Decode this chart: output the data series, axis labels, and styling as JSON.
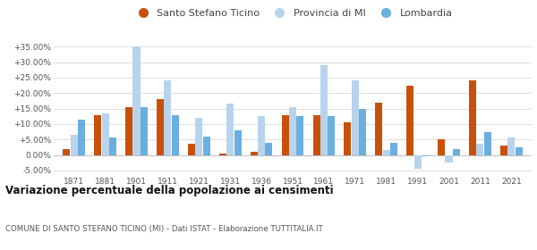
{
  "years": [
    1871,
    1881,
    1901,
    1911,
    1921,
    1931,
    1936,
    1951,
    1961,
    1971,
    1981,
    1991,
    2001,
    2011,
    2021
  ],
  "santo_stefano": [
    2.0,
    13.0,
    15.5,
    18.0,
    3.5,
    0.5,
    1.0,
    13.0,
    13.0,
    10.5,
    17.0,
    22.5,
    5.0,
    24.0,
    3.0
  ],
  "provincia_mi": [
    6.5,
    13.5,
    35.0,
    24.0,
    12.0,
    16.5,
    12.5,
    15.5,
    29.0,
    24.0,
    1.5,
    -4.5,
    -2.5,
    3.5,
    5.5
  ],
  "lombardia": [
    11.5,
    5.5,
    15.5,
    13.0,
    6.0,
    8.0,
    4.0,
    12.5,
    12.5,
    15.0,
    4.0,
    -0.5,
    2.0,
    7.5,
    2.5
  ],
  "color_santo": "#c8510a",
  "color_provincia": "#b8d4ec",
  "color_lombardia": "#6aafe0",
  "ylim": [
    -6.5,
    38
  ],
  "yticks": [
    -5,
    0,
    5,
    10,
    15,
    20,
    25,
    30,
    35
  ],
  "title": "Variazione percentuale della popolazione ai censimenti",
  "subtitle": "COMUNE DI SANTO STEFANO TICINO (MI) - Dati ISTAT - Elaborazione TUTTITALIA.IT",
  "legend_labels": [
    "Santo Stefano Ticino",
    "Provincia di MI",
    "Lombardia"
  ],
  "bg_color": "#ffffff",
  "grid_color": "#dddddd",
  "text_color": "#555555",
  "title_color": "#111111"
}
